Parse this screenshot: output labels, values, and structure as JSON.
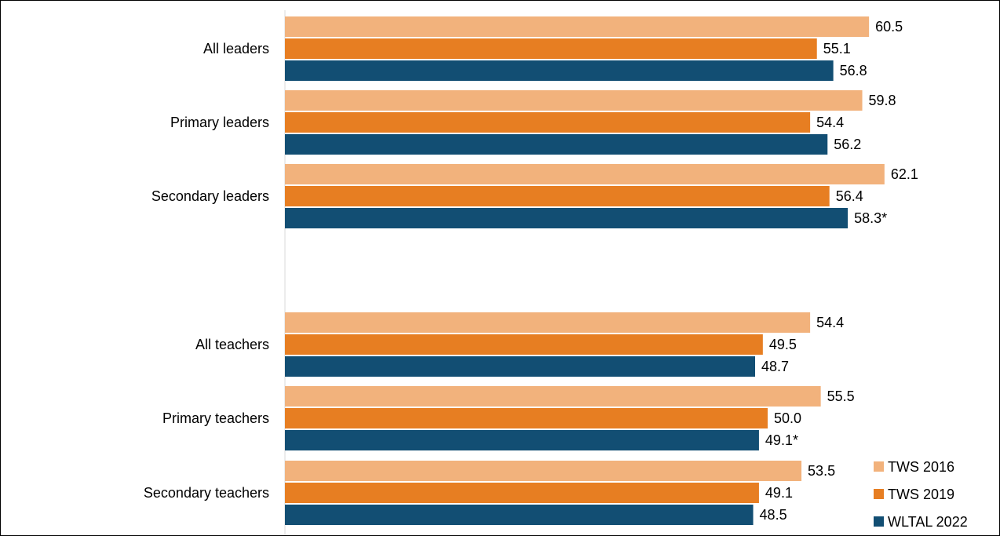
{
  "chart_data": {
    "type": "bar",
    "orientation": "horizontal",
    "categories": [
      "All leaders",
      "Primary leaders",
      "Secondary leaders",
      "All teachers",
      "Primary teachers",
      "Secondary teachers"
    ],
    "series": [
      {
        "name": "TWS 2016",
        "color": "#F2B27C",
        "values": [
          60.5,
          59.8,
          62.1,
          54.4,
          55.5,
          53.5
        ],
        "labels": [
          "60.5",
          "59.8",
          "62.1",
          "54.4",
          "55.5",
          "53.5"
        ]
      },
      {
        "name": "TWS 2019",
        "color": "#E77E22",
        "values": [
          55.1,
          54.4,
          56.4,
          49.5,
          50.0,
          49.1
        ],
        "labels": [
          "55.1",
          "54.4",
          "56.4",
          "49.5",
          "50.0",
          "49.1"
        ]
      },
      {
        "name": "WLTAL 2022",
        "color": "#124E73",
        "values": [
          56.8,
          56.2,
          58.3,
          48.7,
          49.1,
          48.5
        ],
        "labels": [
          "56.8",
          "56.2",
          "58.3*",
          "48.7",
          "49.1*",
          "48.5"
        ]
      }
    ],
    "xlim": [
      0,
      70
    ],
    "grid": false,
    "legend_position": "bottom-right"
  }
}
